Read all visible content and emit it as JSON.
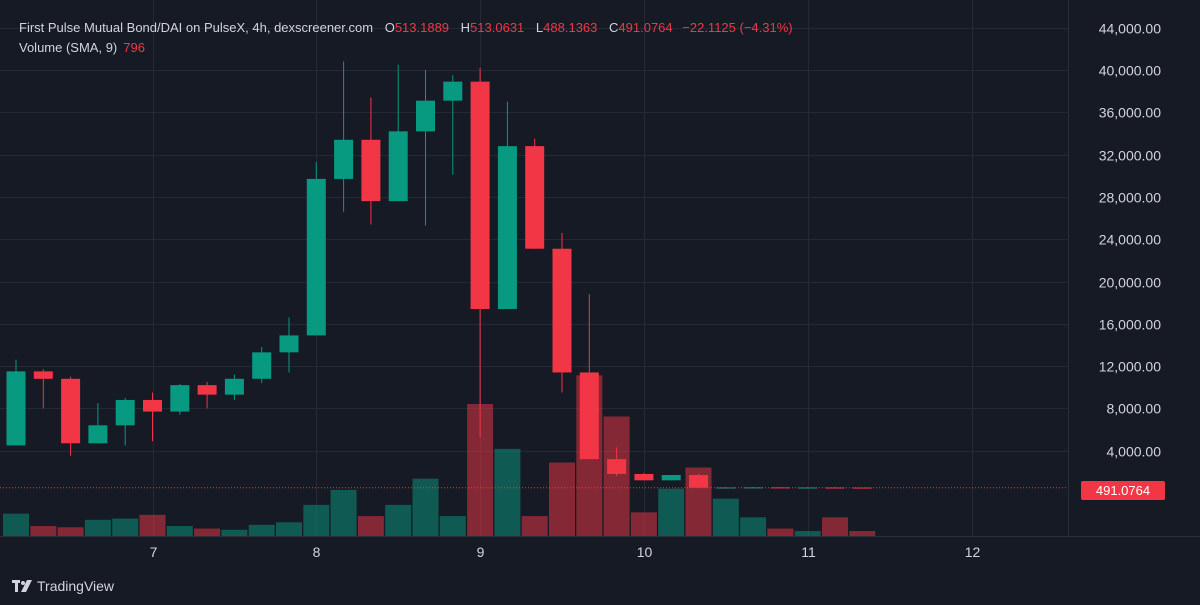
{
  "legend": {
    "title": "First Pulse Mutual Bond/DAI on PulseX, 4h, dexscreener.com",
    "o_label": "O",
    "o_value": "513.1889",
    "h_label": "H",
    "h_value": "513.0631",
    "l_label": "L",
    "l_value": "488.1363",
    "c_label": "C",
    "c_value": "491.0764",
    "change": "−22.1125 (−4.31%)",
    "volume_label": "Volume (SMA, 9)",
    "volume_value": "796"
  },
  "price_tag": "491.0764",
  "brand": {
    "name": "TradingView",
    "icon": "tradingview-logo-icon"
  },
  "colors": {
    "background": "#161a25",
    "up": "#089981",
    "down": "#f23645",
    "grid": "#242936",
    "text": "#d1d4dc"
  },
  "chart_data": {
    "type": "candlestick",
    "interval": "4h",
    "ylim": [
      0,
      46000
    ],
    "y_ticks": [
      "4,000.00",
      "8,000.00",
      "12,000.00",
      "16,000.00",
      "20,000.00",
      "24,000.00",
      "28,000.00",
      "32,000.00",
      "36,000.00",
      "40,000.00",
      "44,000.00"
    ],
    "y_tick_values": [
      4000,
      8000,
      12000,
      16000,
      20000,
      24000,
      28000,
      32000,
      36000,
      40000,
      44000
    ],
    "x_ticks": [
      "7",
      "8",
      "9",
      "10",
      "11",
      "12"
    ],
    "x_tick_index": [
      5,
      11,
      17,
      23,
      29,
      35
    ],
    "last_price": 491.0764,
    "candles": [
      {
        "o": 4500,
        "h": 12600,
        "l": 4500,
        "c": 11500
      },
      {
        "o": 11500,
        "h": 11700,
        "l": 8000,
        "c": 10800
      },
      {
        "o": 10800,
        "h": 11000,
        "l": 3500,
        "c": 4700
      },
      {
        "o": 4700,
        "h": 8500,
        "l": 4700,
        "c": 6400
      },
      {
        "o": 6400,
        "h": 9000,
        "l": 4500,
        "c": 8800
      },
      {
        "o": 8800,
        "h": 9500,
        "l": 4900,
        "c": 7700
      },
      {
        "o": 7700,
        "h": 10300,
        "l": 7400,
        "c": 10200
      },
      {
        "o": 10200,
        "h": 10500,
        "l": 8000,
        "c": 9300
      },
      {
        "o": 9300,
        "h": 11200,
        "l": 8800,
        "c": 10800
      },
      {
        "o": 10800,
        "h": 13800,
        "l": 10400,
        "c": 13300
      },
      {
        "o": 13300,
        "h": 16600,
        "l": 11400,
        "c": 14900
      },
      {
        "o": 14900,
        "h": 31300,
        "l": 14900,
        "c": 29700
      },
      {
        "o": 29700,
        "h": 40800,
        "l": 26600,
        "c": 33400
      },
      {
        "o": 33400,
        "h": 37400,
        "l": 25400,
        "c": 27600
      },
      {
        "o": 27600,
        "h": 40500,
        "l": 27600,
        "c": 34200
      },
      {
        "o": 34200,
        "h": 40000,
        "l": 25300,
        "c": 37100
      },
      {
        "o": 37100,
        "h": 39500,
        "l": 30100,
        "c": 38900
      },
      {
        "o": 38900,
        "h": 40200,
        "l": 5300,
        "c": 17400
      },
      {
        "o": 17400,
        "h": 37000,
        "l": 17400,
        "c": 32800
      },
      {
        "o": 32800,
        "h": 33500,
        "l": 23100,
        "c": 23100
      },
      {
        "o": 23100,
        "h": 24600,
        "l": 9500,
        "c": 11400
      },
      {
        "o": 11400,
        "h": 18800,
        "l": 3200,
        "c": 3200
      },
      {
        "o": 3200,
        "h": 4300,
        "l": 1600,
        "c": 1800
      },
      {
        "o": 1800,
        "h": 1900,
        "l": 1200,
        "c": 1200
      },
      {
        "o": 1200,
        "h": 1700,
        "l": 1200,
        "c": 1700
      },
      {
        "o": 1700,
        "h": 1800,
        "l": 500,
        "c": 500
      },
      {
        "o": 500,
        "h": 550,
        "l": 450,
        "c": 520
      },
      {
        "o": 520,
        "h": 560,
        "l": 480,
        "c": 530
      },
      {
        "o": 530,
        "h": 560,
        "l": 470,
        "c": 480
      },
      {
        "o": 480,
        "h": 540,
        "l": 460,
        "c": 520
      },
      {
        "o": 520,
        "h": 560,
        "l": 480,
        "c": 500
      },
      {
        "o": 513,
        "h": 513,
        "l": 488,
        "c": 491
      }
    ],
    "volume": [
      1800,
      800,
      700,
      1300,
      1400,
      1700,
      800,
      600,
      500,
      900,
      1100,
      2500,
      3700,
      1600,
      2500,
      4600,
      1600,
      10600,
      7000,
      1600,
      5900,
      12900,
      9600,
      1900,
      3800,
      5500,
      3000,
      1500,
      600,
      400,
      1500,
      400
    ]
  }
}
